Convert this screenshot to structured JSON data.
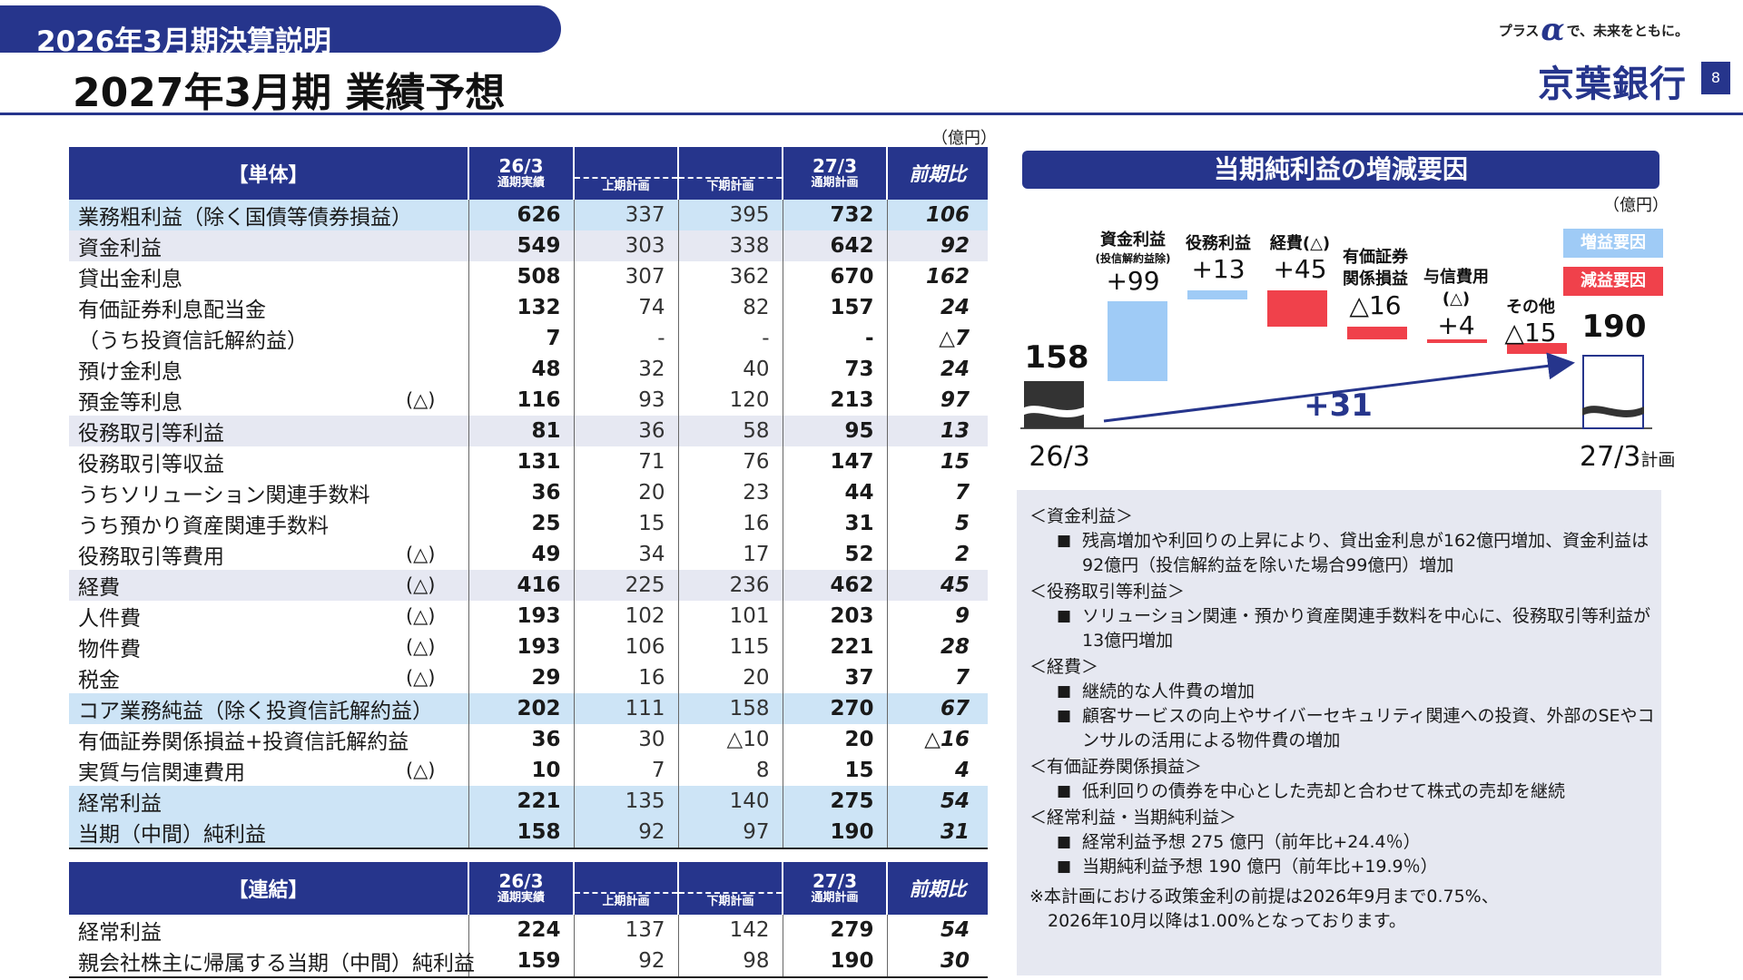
{
  "header": {
    "section": "2026年3月期決算説明",
    "title": "2027年3月期 業績予想",
    "tagline_pre": "プラス",
    "tagline_alpha": "α",
    "tagline_post": "で、未来をともに。",
    "bank": "京葉銀行",
    "page": "8",
    "brand_color": "#26358c"
  },
  "unit": "（億円）",
  "single": {
    "headers": {
      "label": "【単体】",
      "a_big": "26/3",
      "a_small": "通期実績",
      "h1": "上期計画",
      "h2": "下期計画",
      "b_big": "27/3",
      "b_small": "通期計画",
      "yoy": "前期比"
    },
    "rows": [
      {
        "label": "業務粗利益（除く国債等債券損益）",
        "tri": "",
        "a": "626",
        "h1": "337",
        "h2": "395",
        "b": "732",
        "yoy": "106"
      },
      {
        "label": "資金利益",
        "tri": "",
        "a": "549",
        "h1": "303",
        "h2": "338",
        "b": "642",
        "yoy": "92"
      },
      {
        "label": "貸出金利息",
        "tri": "",
        "a": "508",
        "h1": "307",
        "h2": "362",
        "b": "670",
        "yoy": "162"
      },
      {
        "label": "有価証券利息配当金",
        "tri": "",
        "a": "132",
        "h1": "74",
        "h2": "82",
        "b": "157",
        "yoy": "24"
      },
      {
        "label": "（うち投資信託解約益）",
        "tri": "",
        "a": "7",
        "h1": "-",
        "h2": "-",
        "b": "-",
        "yoy": "△7"
      },
      {
        "label": "預け金利息",
        "tri": "",
        "a": "48",
        "h1": "32",
        "h2": "40",
        "b": "73",
        "yoy": "24"
      },
      {
        "label": "預金等利息",
        "tri": "(△)",
        "a": "116",
        "h1": "93",
        "h2": "120",
        "b": "213",
        "yoy": "97"
      },
      {
        "label": "役務取引等利益",
        "tri": "",
        "a": "81",
        "h1": "36",
        "h2": "58",
        "b": "95",
        "yoy": "13"
      },
      {
        "label": "役務取引等収益",
        "tri": "",
        "a": "131",
        "h1": "71",
        "h2": "76",
        "b": "147",
        "yoy": "15"
      },
      {
        "label": "うちソリューション関連手数料",
        "tri": "",
        "a": "36",
        "h1": "20",
        "h2": "23",
        "b": "44",
        "yoy": "7"
      },
      {
        "label": "うち預かり資産関連手数料",
        "tri": "",
        "a": "25",
        "h1": "15",
        "h2": "16",
        "b": "31",
        "yoy": "5"
      },
      {
        "label": "役務取引等費用",
        "tri": "(△)",
        "a": "49",
        "h1": "34",
        "h2": "17",
        "b": "52",
        "yoy": "2"
      },
      {
        "label": "経費",
        "tri": "(△)",
        "a": "416",
        "h1": "225",
        "h2": "236",
        "b": "462",
        "yoy": "45"
      },
      {
        "label": "人件費",
        "tri": "(△)",
        "a": "193",
        "h1": "102",
        "h2": "101",
        "b": "203",
        "yoy": "9"
      },
      {
        "label": "物件費",
        "tri": "(△)",
        "a": "193",
        "h1": "106",
        "h2": "115",
        "b": "221",
        "yoy": "28"
      },
      {
        "label": "税金",
        "tri": "(△)",
        "a": "29",
        "h1": "16",
        "h2": "20",
        "b": "37",
        "yoy": "7"
      },
      {
        "label": "コア業務純益（除く投資信託解約益）",
        "tri": "",
        "a": "202",
        "h1": "111",
        "h2": "158",
        "b": "270",
        "yoy": "67"
      },
      {
        "label": "有価証券関係損益+投資信託解約益",
        "tri": "",
        "a": "36",
        "h1": "30",
        "h2": "△10",
        "b": "20",
        "yoy": "△16"
      },
      {
        "label": "実質与信関連費用",
        "tri": "(△)",
        "a": "10",
        "h1": "7",
        "h2": "8",
        "b": "15",
        "yoy": "4"
      },
      {
        "label": "経常利益",
        "tri": "",
        "a": "221",
        "h1": "135",
        "h2": "140",
        "b": "275",
        "yoy": "54"
      },
      {
        "label": "当期（中間）純利益",
        "tri": "",
        "a": "158",
        "h1": "92",
        "h2": "97",
        "b": "190",
        "yoy": "31"
      }
    ]
  },
  "consolidated": {
    "headers": {
      "label": "【連結】",
      "a_big": "26/3",
      "a_small": "通期実績",
      "h1": "上期計画",
      "h2": "下期計画",
      "b_big": "27/3",
      "b_small": "通期計画",
      "yoy": "前期比"
    },
    "rows": [
      {
        "label": "経常利益",
        "a": "224",
        "h1": "137",
        "h2": "142",
        "b": "279",
        "yoy": "54"
      },
      {
        "label": "親会社株主に帰属する当期（中間）純利益",
        "a": "159",
        "h1": "92",
        "h2": "98",
        "b": "190",
        "yoy": "30"
      }
    ]
  },
  "chart": {
    "title": "当期純利益の増減要因",
    "unit": "（億円）",
    "legend_inc": "増益要因",
    "legend_dec": "減益要因",
    "colors": {
      "inc": "#9fcbf6",
      "dec": "#f0414b",
      "base": "#333333"
    },
    "start_label": "26/3",
    "start_value": "158",
    "end_label": "27/3",
    "end_suffix": "計画",
    "end_value": "190",
    "total_change": "+31",
    "factors": [
      {
        "name": "資金利益",
        "sub": "(投信解約益除)",
        "value": "+99",
        "kind": "inc"
      },
      {
        "name": "役務利益",
        "sub": "",
        "value": "+13",
        "kind": "inc"
      },
      {
        "name": "経費(△)",
        "sub": "",
        "value": "+45",
        "kind": "dec"
      },
      {
        "name": "有価証券\n関係損益",
        "sub": "",
        "value": "△16",
        "kind": "dec"
      },
      {
        "name": "与信費用\n(△)",
        "sub": "",
        "value": "+4",
        "kind": "dec"
      },
      {
        "name": "その他",
        "sub": "",
        "value": "△15",
        "kind": "dec"
      }
    ]
  },
  "notes": [
    {
      "h": "＜資金利益＞",
      "items": [
        "残高増加や利回りの上昇により、貸出金利息が162億円増加、資金利益は92億円（投信解約益を除いた場合99億円）増加"
      ]
    },
    {
      "h": "＜役務取引等利益＞",
      "items": [
        "ソリューション関連・預かり資産関連手数料を中心に、役務取引等利益が13億円増加"
      ]
    },
    {
      "h": "＜経費＞",
      "items": [
        "継続的な人件費の増加",
        "顧客サービスの向上やサイバーセキュリティ関連への投資、外部のSEやコンサルの活用による物件費の増加"
      ]
    },
    {
      "h": "＜有価証券関係損益＞",
      "items": [
        "低利回りの債券を中心とした売却と合わせて株式の売却を継続"
      ]
    },
    {
      "h": "＜経常利益・当期純利益＞",
      "items": [
        "経常利益予想 275 億円（前年比+24.4％）",
        "当期純利益予想 190 億円（前年比+19.9％）"
      ]
    }
  ],
  "footnote1": "※本計画における政策金利の前提は2026年9月まで0.75%、",
  "footnote2": "2026年10月以降は1.00%となっております。"
}
